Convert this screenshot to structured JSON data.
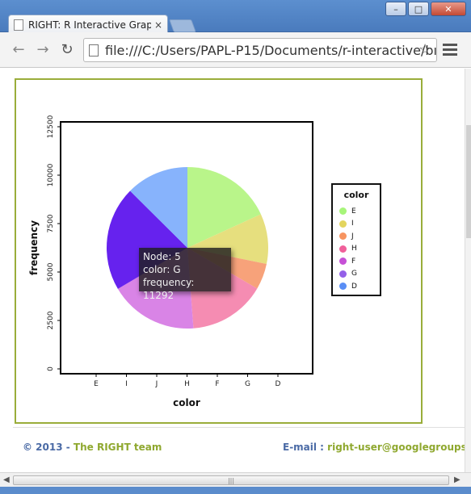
{
  "browser": {
    "tab_title": "RIGHT: R Interactive Grapl",
    "tab_close": "×",
    "url": "file:///C:/Users/PAPL-P15/Documents/r-interactive/bı",
    "back_glyph": "←",
    "forward_glyph": "→",
    "reload_glyph": "↻",
    "star_glyph": "☆",
    "window_buttons": {
      "minimize": "–",
      "maximize": "□",
      "close": "✕"
    },
    "icons": [
      "page-icon",
      "back-arrow-icon",
      "forward-arrow-icon",
      "reload-icon",
      "star-icon",
      "menu-icon"
    ]
  },
  "chart_data": {
    "type": "pie",
    "title": "",
    "xlabel": "color",
    "ylabel": "frequency",
    "x_ticks": [
      "E",
      "I",
      "J",
      "H",
      "F",
      "G",
      "D"
    ],
    "y_ticks": [
      "0",
      "2500",
      "5000",
      "7500",
      "10000",
      "12500"
    ],
    "ylim": [
      0,
      12500
    ],
    "categories": [
      "E",
      "I",
      "J",
      "H",
      "F",
      "G",
      "D"
    ],
    "values": [
      9797,
      5422,
      2808,
      8304,
      9542,
      11292,
      6775
    ],
    "colors": {
      "E": "#b9f58a",
      "I": "#e6df7e",
      "J": "#f7a27a",
      "H": "#f58cb2",
      "F": "#d984e6",
      "G": "#6622ee",
      "D": "#87b3fc"
    },
    "legend": {
      "title": "color",
      "position": "right",
      "items": [
        {
          "label": "E",
          "color": "#a7f57a"
        },
        {
          "label": "I",
          "color": "#e3d55e"
        },
        {
          "label": "J",
          "color": "#f79460"
        },
        {
          "label": "H",
          "color": "#f0609a"
        },
        {
          "label": "F",
          "color": "#c650d6"
        },
        {
          "label": "G",
          "color": "#9460e8"
        },
        {
          "label": "D",
          "color": "#5a8ef5"
        }
      ]
    },
    "grid": false
  },
  "tooltip": {
    "line1": "Node: 5",
    "line2": "color: G",
    "line3": "frequency: 11292"
  },
  "footer": {
    "copyright": "© 2013 - ",
    "team": "The RIGHT team",
    "email_label": "E-mail : ",
    "email": "right-user@googlegroups.com"
  },
  "scrollbar": {
    "left_arrow": "◀",
    "right_arrow": "▶",
    "grip": "|||"
  }
}
